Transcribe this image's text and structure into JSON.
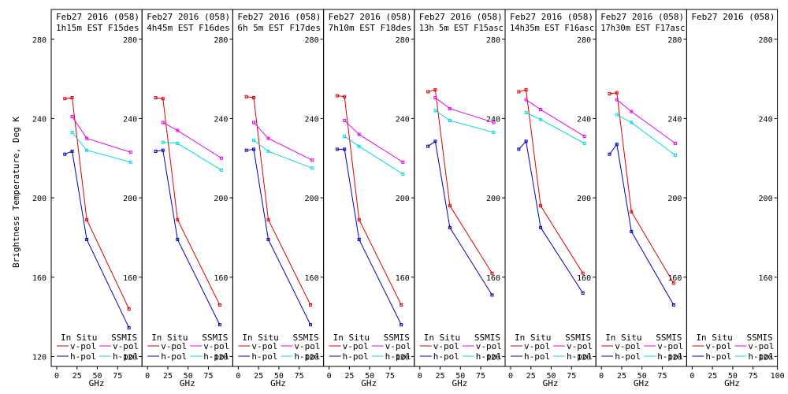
{
  "ylabel": "Brightness Temperature, Deg K",
  "xlabel": "GHz",
  "legend": {
    "in_situ": "In Situ",
    "ssmis": "SSMIS",
    "vpol": "v-pol",
    "hpol": "h-pol"
  },
  "colors": {
    "insitu_v": "#dd0000",
    "insitu_h": "#0000bb",
    "ssmis_v": "#ee00ee",
    "ssmis_h": "#00dddd",
    "frame": "#000000"
  },
  "chart_data": {
    "type": "line",
    "ylim": [
      115,
      295
    ],
    "xlim": [
      0,
      100
    ],
    "yticks": [
      120,
      160,
      200,
      240,
      280
    ],
    "xticks": [
      0,
      25,
      50,
      75
    ],
    "last_xticks": [
      0,
      25,
      50,
      75,
      100
    ],
    "panels": [
      {
        "title1": "Feb27 2016 (058)",
        "title2": "1h15m EST F15des",
        "insitu_x": [
          10,
          19,
          37,
          89
        ],
        "insitu_v": [
          250,
          250.5,
          189,
          144
        ],
        "insitu_h": [
          222,
          223.5,
          179,
          134.5
        ],
        "ssmis_x": [
          19,
          37,
          91
        ],
        "ssmis_v": [
          241,
          230,
          223
        ],
        "ssmis_h": [
          233,
          224,
          218
        ]
      },
      {
        "title1": "Feb27 2016 (058)",
        "title2": "4h45m EST F16des",
        "insitu_x": [
          10,
          19,
          37,
          89
        ],
        "insitu_v": [
          250.5,
          250,
          189,
          146
        ],
        "insitu_h": [
          223.5,
          224,
          179,
          136
        ]
      },
      {
        "title1": "Feb27 2016 (058)",
        "title2": "6h 5m EST F17des",
        "insitu_x": [
          10,
          19,
          37,
          89
        ],
        "insitu_v": [
          251,
          250.5,
          189,
          146
        ],
        "insitu_h": [
          224,
          224.5,
          179,
          136
        ]
      },
      {
        "title1": "Feb27 2016 (058)",
        "title2": "7h10m EST F18des",
        "insitu_x": [
          10,
          19,
          37,
          89
        ],
        "insitu_v": [
          251.5,
          251,
          189,
          146
        ],
        "insitu_h": [
          224.5,
          224.5,
          179,
          136
        ]
      },
      {
        "title1": "Feb27 2016 (058)",
        "title2": "13h 5m EST F15asc",
        "insitu_x": [
          10,
          19,
          37,
          89
        ],
        "insitu_v": [
          253.5,
          254.5,
          196,
          162
        ],
        "insitu_h": [
          226,
          228.5,
          185,
          151
        ]
      },
      {
        "title1": "Feb27 2016 (058)",
        "title2": "14h35m EST F16asc",
        "insitu_x": [
          10,
          19,
          37,
          89
        ],
        "insitu_v": [
          253.5,
          254.5,
          196,
          162
        ],
        "insitu_h": [
          224.5,
          228.5,
          185,
          152
        ]
      },
      {
        "title1": "Feb27 2016 (058)",
        "title2": "17h30m EST F17asc",
        "insitu_x": [
          10,
          19,
          37,
          89
        ],
        "insitu_v": [
          252.5,
          253,
          193,
          157
        ],
        "insitu_h": [
          222,
          227,
          183,
          146
        ]
      },
      {
        "title1": "Feb27 2016 (058)",
        "title2": "",
        "insitu_x": [],
        "insitu_v": [],
        "insitu_h": [],
        "ssmis_x": [],
        "ssmis_v": [],
        "ssmis_h": []
      }
    ],
    "ssmis_by_panel": [
      null,
      {
        "x": [
          19,
          37,
          91
        ],
        "v": [
          238,
          234,
          220
        ],
        "h": [
          228,
          227.5,
          214
        ]
      },
      {
        "x": [
          19,
          37,
          91
        ],
        "v": [
          238,
          230,
          219
        ],
        "h": [
          229,
          223.5,
          215
        ]
      },
      {
        "x": [
          19,
          37,
          91
        ],
        "v": [
          239,
          232,
          218
        ],
        "h": [
          231,
          226,
          212
        ]
      },
      {
        "x": [
          19,
          37,
          91
        ],
        "v": [
          250.5,
          245,
          238
        ],
        "h": [
          244,
          239,
          233
        ]
      },
      {
        "x": [
          19,
          37,
          91
        ],
        "v": [
          249.5,
          244.5,
          231
        ],
        "h": [
          243,
          239.5,
          227.5
        ]
      },
      {
        "x": [
          19,
          37,
          91
        ],
        "v": [
          249.5,
          243.5,
          227.5
        ],
        "h": [
          242,
          238,
          221.5
        ]
      },
      null
    ]
  }
}
